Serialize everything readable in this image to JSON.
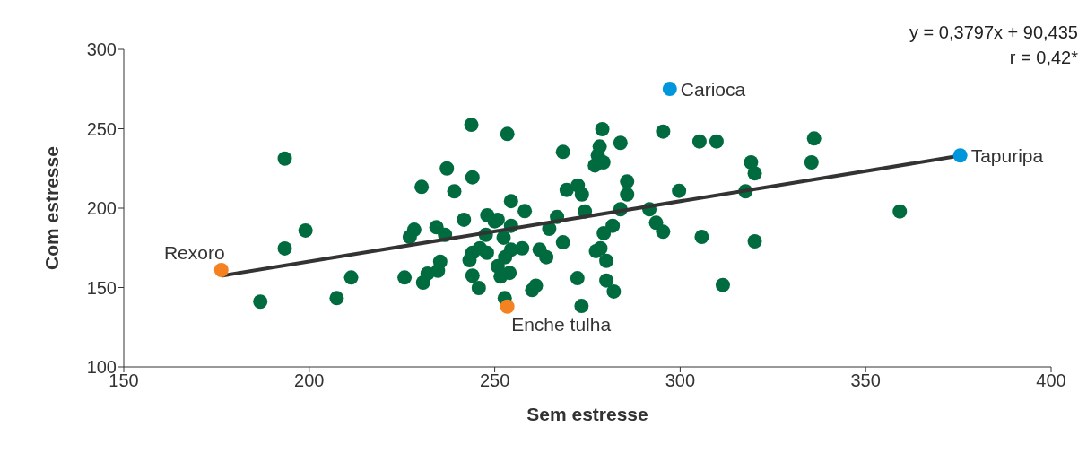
{
  "chart_data": {
    "type": "scatter",
    "xlabel": "Sem estresse",
    "ylabel": "Com estresse",
    "xlim": [
      150,
      400
    ],
    "xticks": [
      150,
      200,
      250,
      300,
      350,
      400
    ],
    "ylim": [
      100,
      300
    ],
    "yticks": [
      100,
      150,
      200,
      250,
      300
    ],
    "marker": "circle",
    "grid": false,
    "legend": false,
    "annotations": [
      "y = 0,3797x + 90,435",
      "r = 0,42*",
      {
        "text": "Rexoro",
        "x": 176.3,
        "y": 161
      },
      {
        "text": "Enche tulha",
        "x": 253.4,
        "y": 138
      },
      {
        "text": "Carioca",
        "x": 297.2,
        "y": 275.1
      },
      {
        "text": "Tapuripa",
        "x": 375.5,
        "y": 233.2
      }
    ],
    "series": [
      {
        "color": "#006b3f",
        "x": [
          193.4,
          230.3,
          199.0,
          193.4,
          228.3,
          227.1,
          186.8,
          207.4,
          211.3,
          225.7,
          230.7,
          231.9,
          243.7,
          253.4,
          237.1,
          244.0,
          239.1,
          254.4,
          258.1,
          241.7,
          248.0,
          250.0,
          250.8,
          254.4,
          234.3,
          236.6,
          247.6,
          252.4,
          246.0,
          244.0,
          247.9,
          243.2,
          257.4,
          254.4,
          252.8,
          250.8,
          251.6,
          254.0,
          235.3,
          234.7,
          244.0,
          245.7,
          252.7,
          260.1,
          261.1,
          262.1,
          263.9,
          264.7,
          266.8,
          268.4,
          268.4,
          269.4,
          272.4,
          273.5,
          274.3,
          272.3,
          273.4,
          279.0,
          278.3,
          277.8,
          279.3,
          277.0,
          283.9,
          285.7,
          285.7,
          283.9,
          281.8,
          279.4,
          278.5,
          277.3,
          280.1,
          280.1,
          282.1,
          291.7,
          293.5,
          295.4,
          295.4,
          299.7,
          305.2,
          309.8,
          336.1,
          319.1,
          320.1,
          335.4,
          317.6,
          305.8,
          320.1,
          311.5,
          359.2
        ],
        "values": [
          231.2,
          213.4,
          185.9,
          174.6,
          186.4,
          181.9,
          141.1,
          143.3,
          156.3,
          156.3,
          153.1,
          158.8,
          252.5,
          246.7,
          225.0,
          219.4,
          210.6,
          204.4,
          198.1,
          192.7,
          195.5,
          191.7,
          192.7,
          188.9,
          188.0,
          183.2,
          183.2,
          181.4,
          174.7,
          171.9,
          171.9,
          167.2,
          174.7,
          173.8,
          169.1,
          163.4,
          156.9,
          159.2,
          166.3,
          160.6,
          157.5,
          149.7,
          143.3,
          148.4,
          151.2,
          173.8,
          169.1,
          187.0,
          194.5,
          178.5,
          235.4,
          211.5,
          214.3,
          208.6,
          197.9,
          155.9,
          138.4,
          249.7,
          238.8,
          233.2,
          228.8,
          226.9,
          241.1,
          216.8,
          208.6,
          199.3,
          188.9,
          184.2,
          174.7,
          172.9,
          166.8,
          154.4,
          147.5,
          199.3,
          190.8,
          185.1,
          248.2,
          210.9,
          242.0,
          242.0,
          243.9,
          228.8,
          221.9,
          228.8,
          210.6,
          181.9,
          179.1,
          151.6,
          197.9
        ]
      },
      {
        "type": "line",
        "marker": "none",
        "color": "#333333",
        "x": [
          176.3,
          375.5
        ],
        "values": [
          157.4,
          233.0
        ]
      },
      {
        "color": "#f58220",
        "x": [
          176.3,
          253.4
        ],
        "values": [
          161,
          138
        ]
      },
      {
        "color": "#0096db",
        "x": [
          297.2,
          375.5
        ],
        "values": [
          275.1,
          233.2
        ]
      }
    ]
  }
}
